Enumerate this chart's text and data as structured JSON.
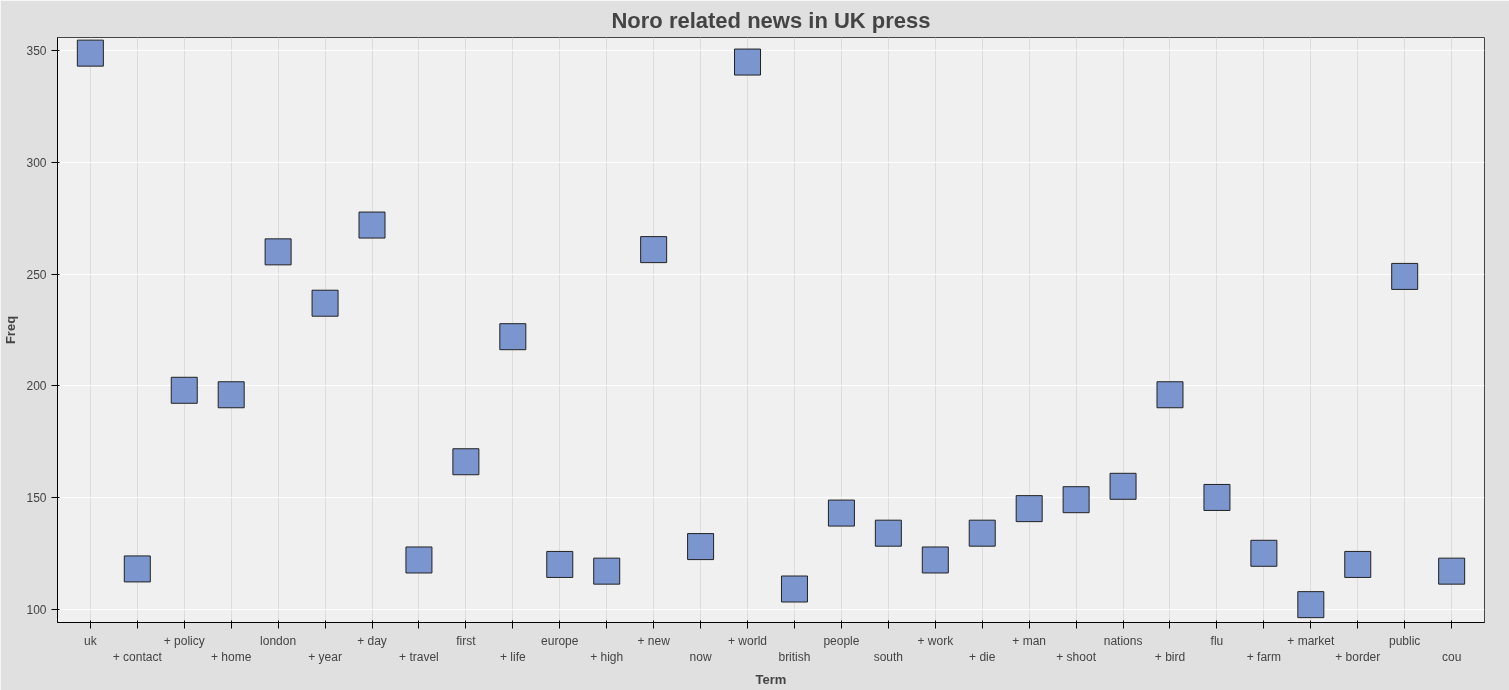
{
  "chart_data": {
    "type": "scatter",
    "title": "Noro related news in UK press",
    "xlabel": "Term",
    "ylabel": "Freq",
    "categories": [
      "uk",
      "+ contact",
      "+ policy",
      "+ home",
      "london",
      "+ year",
      "+ day",
      "+ travel",
      "first",
      "+ life",
      "europe",
      "+ high",
      "+ new",
      "now",
      "+ world",
      "british",
      "people",
      "south",
      "+ work",
      "+ die",
      "+ man",
      "+ shoot",
      "nations",
      "+ bird",
      "flu",
      "+ farm",
      "+ market",
      "+ border",
      "public",
      "cou"
    ],
    "series": [
      {
        "color": "#7b96cf",
        "values": [
          349,
          118,
          198,
          196,
          260,
          237,
          272,
          122,
          166,
          222,
          120,
          117,
          261,
          128,
          345,
          109,
          143,
          134,
          122,
          134,
          145,
          149,
          155,
          196,
          150,
          125,
          102,
          120,
          249,
          117
        ]
      }
    ],
    "ylim": [
      94,
      356
    ],
    "yticks": [
      100,
      150,
      200,
      250,
      300,
      350
    ],
    "grid": true,
    "marker": "square"
  }
}
